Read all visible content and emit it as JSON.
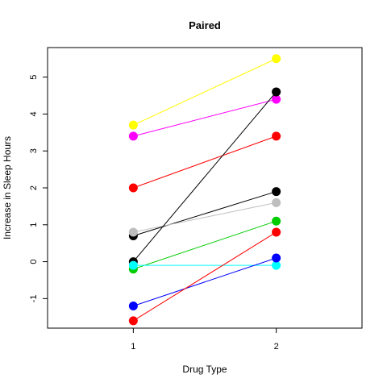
{
  "chart_data": {
    "type": "line",
    "title": "Paired",
    "xlabel": "Drug Type",
    "ylabel": "Increase in Sleep Hours",
    "x_ticks": [
      "1",
      "2"
    ],
    "y_ticks": [
      "-1",
      "0",
      "1",
      "2",
      "3",
      "4",
      "5"
    ],
    "xlim": [
      0.4,
      2.6
    ],
    "ylim": [
      -1.8,
      5.8
    ],
    "series": [
      {
        "color": "#ffff00",
        "values": [
          3.7,
          5.5
        ]
      },
      {
        "color": "#ff00ff",
        "values": [
          3.4,
          4.4
        ]
      },
      {
        "color": "#ff0000",
        "values": [
          2.0,
          3.4
        ]
      },
      {
        "color": "#000000",
        "values": [
          0.7,
          1.9
        ]
      },
      {
        "color": "#bebebe",
        "values": [
          0.8,
          1.6
        ]
      },
      {
        "color": "#000000",
        "values": [
          0.0,
          4.6
        ]
      },
      {
        "color": "#00cd00",
        "values": [
          -0.2,
          1.1
        ]
      },
      {
        "color": "#00ffff",
        "values": [
          -0.1,
          -0.1
        ]
      },
      {
        "color": "#0000ff",
        "values": [
          -1.2,
          0.1
        ]
      },
      {
        "color": "#ff0000",
        "values": [
          -1.6,
          0.8
        ]
      }
    ]
  }
}
